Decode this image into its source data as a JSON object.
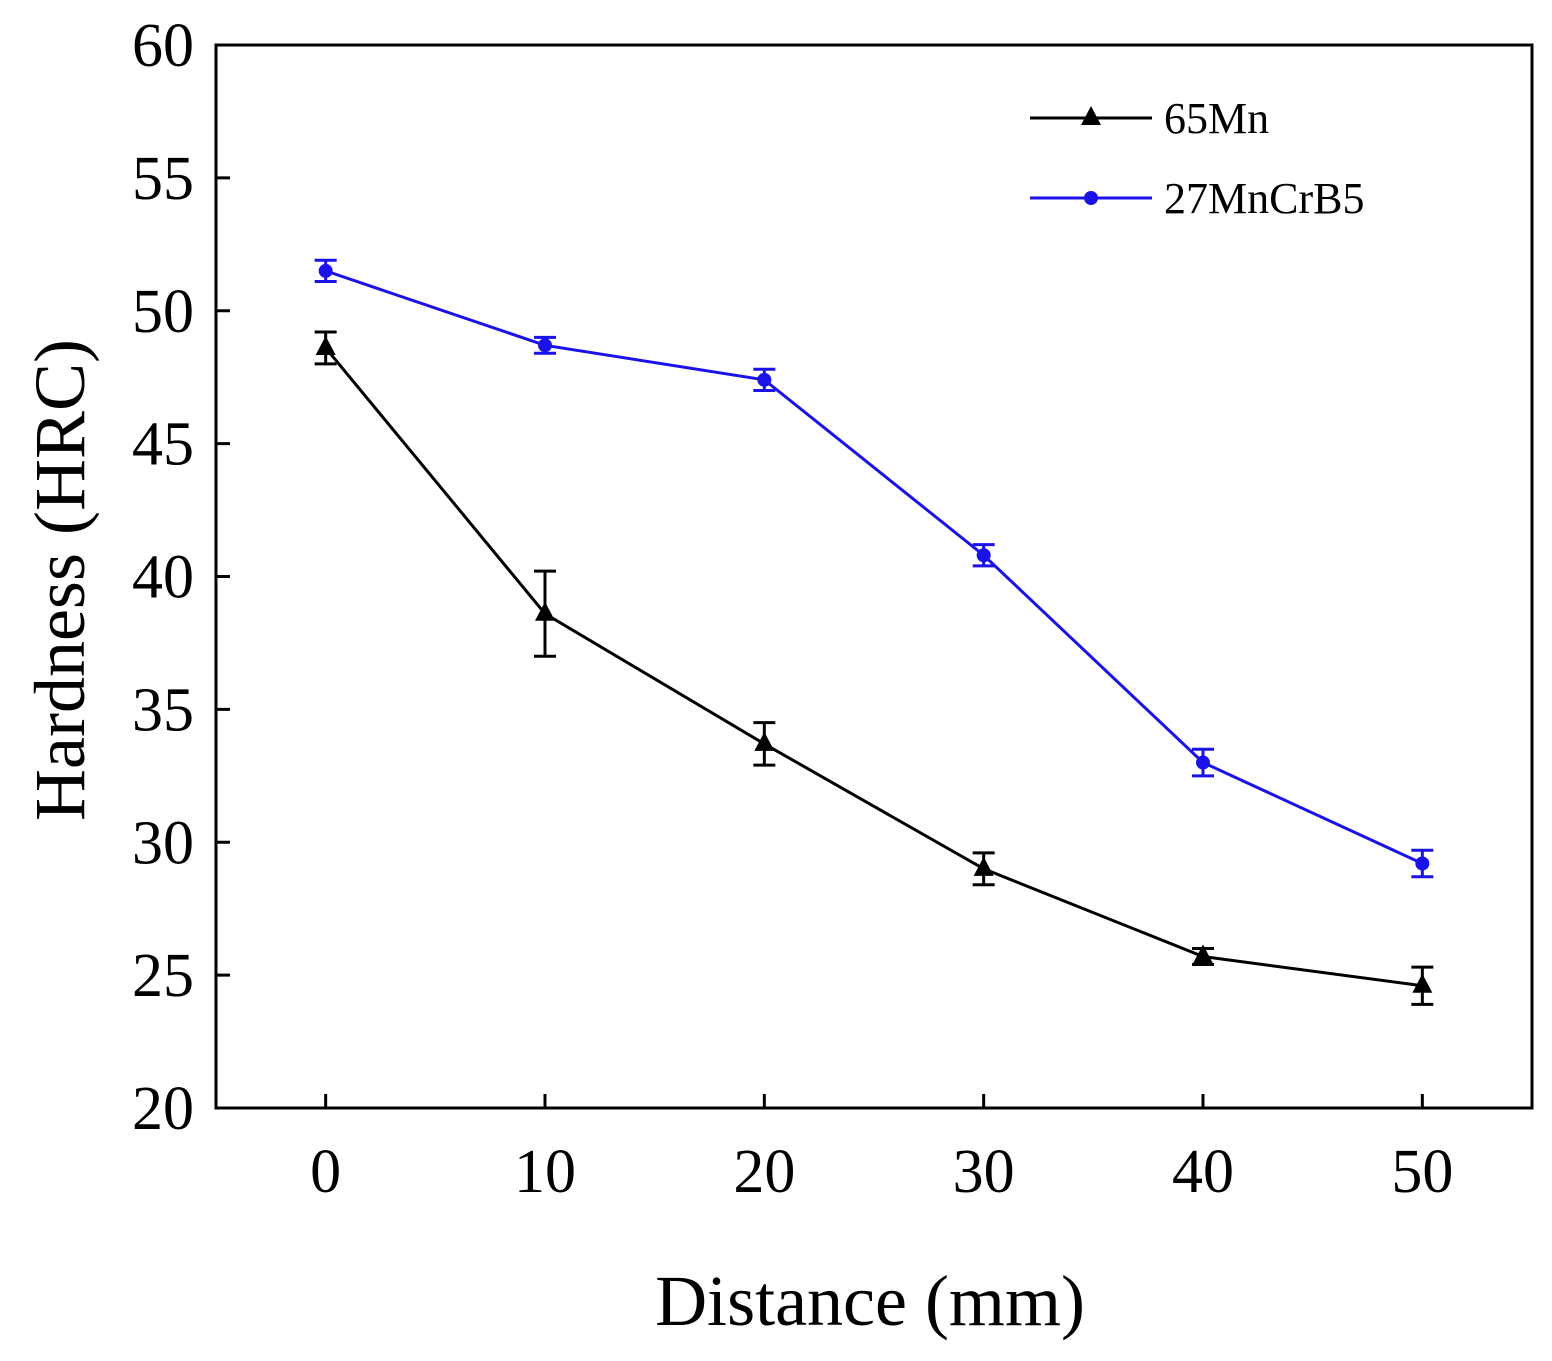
{
  "chart_data": {
    "type": "line",
    "title": "",
    "xlabel": "Distance (mm)",
    "ylabel": "Hardness (HRC)",
    "x": [
      0,
      10,
      20,
      30,
      40,
      50
    ],
    "xlim": [
      -5,
      55
    ],
    "ylim": [
      20,
      60
    ],
    "xticks": [
      0,
      10,
      20,
      30,
      40,
      50
    ],
    "yticks": [
      20,
      25,
      30,
      35,
      40,
      45,
      50,
      55,
      60
    ],
    "grid": false,
    "legend_position": "top-right",
    "series": [
      {
        "name": "65Mn",
        "color": "#000000",
        "marker": "triangle",
        "values": [
          48.6,
          38.6,
          33.7,
          29.0,
          25.7,
          24.6
        ],
        "errors": [
          0.6,
          1.6,
          0.8,
          0.6,
          0.3,
          0.7
        ]
      },
      {
        "name": "27MnCrB5",
        "color": "#1a12e8",
        "marker": "circle",
        "values": [
          51.5,
          48.7,
          47.4,
          40.8,
          33.0,
          29.2
        ],
        "errors": [
          0.4,
          0.3,
          0.4,
          0.4,
          0.5,
          0.5
        ]
      }
    ]
  }
}
